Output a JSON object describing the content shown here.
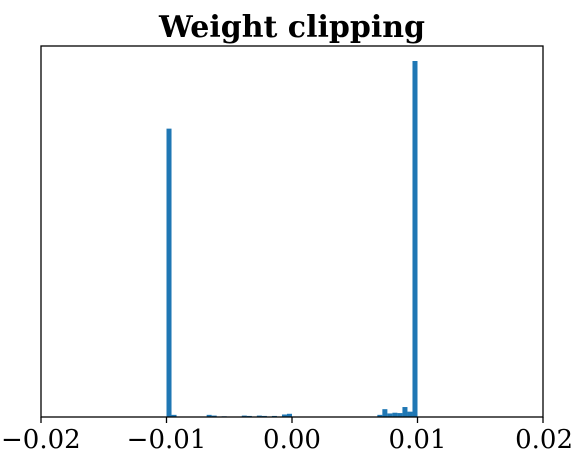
{
  "chart_data": {
    "type": "bar",
    "title": "Weight clipping",
    "xlabel": "",
    "ylabel": "",
    "xlim": [
      -0.02,
      0.02
    ],
    "ylim": [
      0,
      1.0
    ],
    "x_ticks": [
      -0.02,
      -0.01,
      0.0,
      0.01,
      0.02
    ],
    "x_tick_labels": [
      "−0.02",
      "−0.01",
      "0.00",
      "0.01",
      "0.02"
    ],
    "y_ticks_visible": false,
    "grid": false,
    "legend": "none",
    "bar_color": "#1f77b4",
    "bin_width": 0.0004,
    "bins": [
      {
        "x": -0.01,
        "value": 0.81
      },
      {
        "x": -0.0096,
        "value": 0.006
      },
      {
        "x": -0.0068,
        "value": 0.006
      },
      {
        "x": -0.0064,
        "value": 0.004
      },
      {
        "x": -0.0056,
        "value": 0.002
      },
      {
        "x": -0.004,
        "value": 0.004
      },
      {
        "x": -0.0036,
        "value": 0.003
      },
      {
        "x": -0.0028,
        "value": 0.004
      },
      {
        "x": -0.0024,
        "value": 0.003
      },
      {
        "x": -0.0016,
        "value": 0.003
      },
      {
        "x": -0.0008,
        "value": 0.007
      },
      {
        "x": -0.0004,
        "value": 0.009
      },
      {
        "x": 0.0068,
        "value": 0.006
      },
      {
        "x": 0.0072,
        "value": 0.022
      },
      {
        "x": 0.0076,
        "value": 0.01
      },
      {
        "x": 0.008,
        "value": 0.012
      },
      {
        "x": 0.0084,
        "value": 0.011
      },
      {
        "x": 0.0088,
        "value": 0.028
      },
      {
        "x": 0.0092,
        "value": 0.015
      },
      {
        "x": 0.0096,
        "value": 1.0
      }
    ]
  }
}
